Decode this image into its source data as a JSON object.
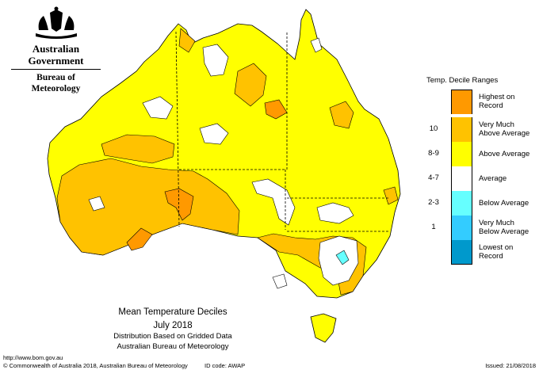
{
  "logo": {
    "crest": "commonwealth-coat-of-arms",
    "government": "Australian Government",
    "bureau": "Bureau of Meteorology"
  },
  "map": {
    "title": "Mean Temperature Deciles",
    "period": "July 2018",
    "subtitle_1": "Distribution Based on Gridded Data",
    "subtitle_2": "Australian Bureau of Meteorology",
    "url": "http://www.bom.gov.au",
    "copyright": "© Commonwealth of Australia 2018, Australian Bureau of Meteorology",
    "id_code": "ID code: AWAP",
    "issued": "Issued: 21/08/2018"
  },
  "legend": {
    "title": "Temp. Decile Ranges",
    "items": [
      {
        "code": "",
        "label": "Highest on Record",
        "color": "#ff9900"
      },
      {
        "code": "10",
        "label": "Very Much Above Average",
        "color": "#ffc200"
      },
      {
        "code": "8-9",
        "label": "Above Average",
        "color": "#ffff00"
      },
      {
        "code": "4-7",
        "label": "Average",
        "color": "#ffffff"
      },
      {
        "code": "2-3",
        "label": "Below Average",
        "color": "#66ffff"
      },
      {
        "code": "1",
        "label": "Very Much Below Average",
        "color": "#33ccff"
      },
      {
        "code": "",
        "label": "Lowest on Record",
        "color": "#0099cc"
      }
    ]
  }
}
